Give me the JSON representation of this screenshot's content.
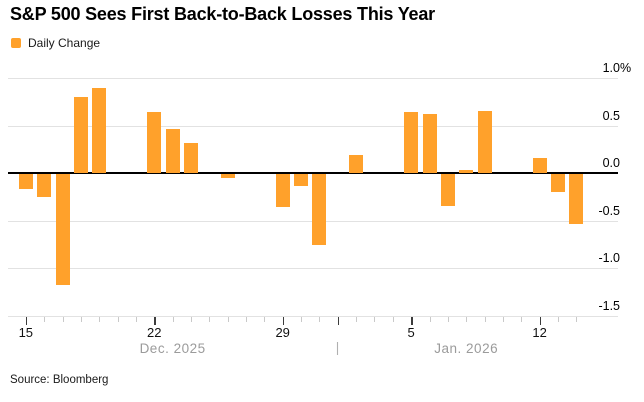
{
  "header": {
    "title": "S&P 500 Sees First Back-to-Back Losses This Year"
  },
  "legend": {
    "label": "Daily Change"
  },
  "source": "Source: Bloomberg",
  "chart_data": {
    "type": "bar",
    "title": "S&P 500 Sees First Back-to-Back Losses This Year",
    "series_name": "Daily Change",
    "unit": "%",
    "ylim": [
      -1.5,
      1.0
    ],
    "grid": true,
    "legend_position": "top-left",
    "points": [
      {
        "date": "Dec 15",
        "slot": 0,
        "value": -0.16
      },
      {
        "date": "Dec 16",
        "slot": 1,
        "value": -0.24
      },
      {
        "date": "Dec 17",
        "slot": 2,
        "value": -1.17
      },
      {
        "date": "Dec 18",
        "slot": 3,
        "value": 0.8
      },
      {
        "date": "Dec 19",
        "slot": 4,
        "value": 0.89
      },
      {
        "date": "Dec 22",
        "slot": 7,
        "value": 0.64
      },
      {
        "date": "Dec 23",
        "slot": 8,
        "value": 0.46
      },
      {
        "date": "Dec 24",
        "slot": 9,
        "value": 0.32
      },
      {
        "date": "Dec 26",
        "slot": 11,
        "value": -0.04
      },
      {
        "date": "Dec 29",
        "slot": 14,
        "value": -0.35
      },
      {
        "date": "Dec 30",
        "slot": 15,
        "value": -0.13
      },
      {
        "date": "Dec 31",
        "slot": 16,
        "value": -0.75
      },
      {
        "date": "Jan 2",
        "slot": 18,
        "value": 0.19
      },
      {
        "date": "Jan 5",
        "slot": 21,
        "value": 0.64
      },
      {
        "date": "Jan 6",
        "slot": 22,
        "value": 0.62
      },
      {
        "date": "Jan 7",
        "slot": 23,
        "value": -0.34
      },
      {
        "date": "Jan 8",
        "slot": 24,
        "value": 0.03
      },
      {
        "date": "Jan 9",
        "slot": 25,
        "value": 0.65
      },
      {
        "date": "Jan 12",
        "slot": 28,
        "value": 0.16
      },
      {
        "date": "Jan 13",
        "slot": 29,
        "value": -0.19
      },
      {
        "date": "Jan 14",
        "slot": 30,
        "value": -0.53
      }
    ],
    "y_axis": {
      "ticks": [
        {
          "value": 1.0,
          "label": "1.0",
          "suffix": "%"
        },
        {
          "value": 0.5,
          "label": "0.5",
          "suffix": ""
        },
        {
          "value": 0.0,
          "label": "0.0",
          "suffix": ""
        },
        {
          "value": -0.5,
          "label": "-0.5",
          "suffix": ""
        },
        {
          "value": -1.0,
          "label": "-1.0",
          "suffix": ""
        },
        {
          "value": -1.5,
          "label": "-1.5",
          "suffix": ""
        }
      ]
    },
    "x_axis": {
      "total_slots": 31,
      "major_slots": [
        0,
        7,
        14,
        17,
        21,
        28
      ],
      "day_labels": [
        {
          "slot": 0,
          "label": "15"
        },
        {
          "slot": 7,
          "label": "22"
        },
        {
          "slot": 14,
          "label": "29"
        },
        {
          "slot": 21,
          "label": "5"
        },
        {
          "slot": 28,
          "label": "12"
        }
      ],
      "month_labels": [
        {
          "label": "Dec. 2025",
          "from_slot": 0,
          "to_slot": 16
        },
        {
          "label": "Jan. 2026",
          "from_slot": 18,
          "to_slot": 30
        }
      ],
      "separator": {
        "glyph": "|",
        "slot": 17
      }
    },
    "colors": {
      "bar": "#FFA12B",
      "gridline": "#E2E2E2",
      "zero_line": "#000000",
      "tick_minor": "#C9C9C9",
      "tick_major": "#3C3C3C",
      "month_text": "#9B9B9B"
    }
  }
}
